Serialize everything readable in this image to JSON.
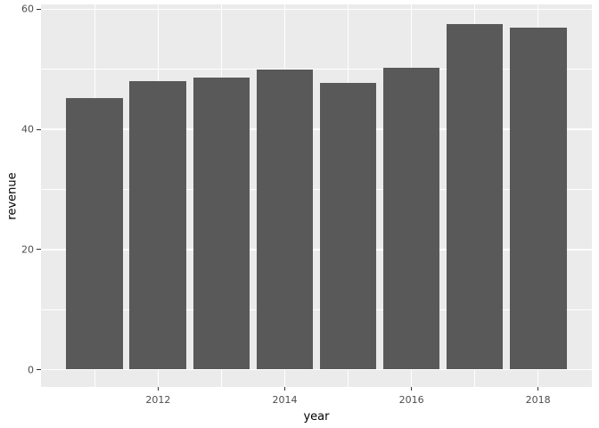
{
  "chart_data": {
    "type": "bar",
    "title": "",
    "xlabel": "year",
    "ylabel": "revenue",
    "categories": [
      2011,
      2012,
      2013,
      2014,
      2015,
      2016,
      2017,
      2018
    ],
    "values": [
      45.2,
      48.0,
      48.6,
      50.0,
      47.8,
      50.2,
      57.6,
      57.0
    ],
    "x_ticks": [
      2012,
      2014,
      2016,
      2018
    ],
    "x_minor_ticks": [
      2011,
      2013,
      2015,
      2017
    ],
    "y_ticks": [
      0,
      20,
      40,
      60
    ],
    "y_minor_ticks": [
      10,
      30,
      50
    ],
    "xlim": [
      2010.15,
      2018.85
    ],
    "ylim": [
      -2.9,
      60.8
    ],
    "bar_width": 0.9,
    "bar_color": "#595959",
    "panel_bg": "#EBEBEB",
    "grid_color": "#FFFFFF",
    "tick_color": "#333333",
    "tick_label_color": "#4D4D4D",
    "axis_title_color": "#000000",
    "legend": "none",
    "grid": "on"
  }
}
